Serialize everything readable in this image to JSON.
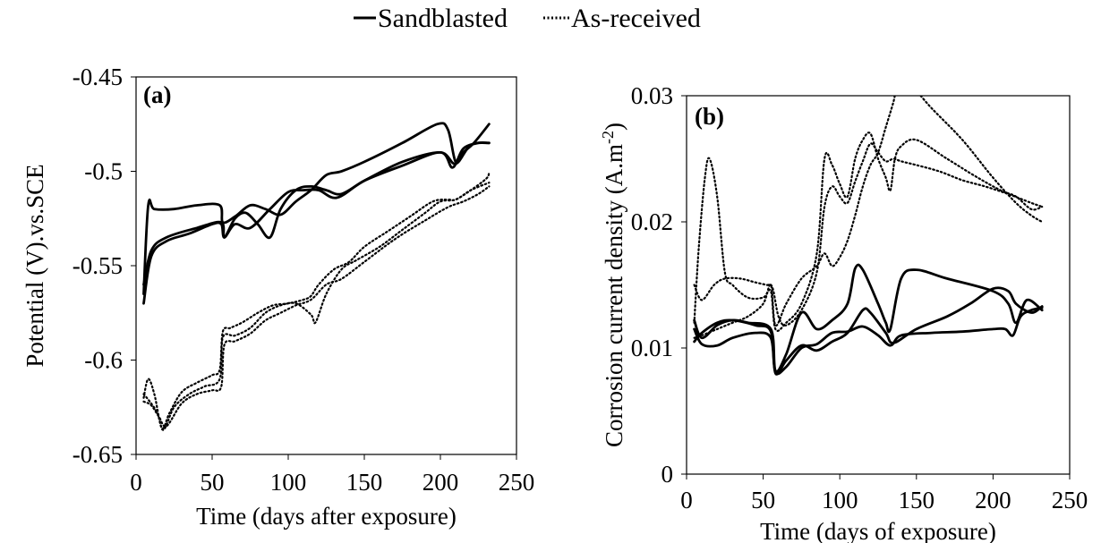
{
  "legend": {
    "solid_label": "Sandblasted",
    "dotted_label": "As-received"
  },
  "chart_data": [
    {
      "type": "line",
      "panel_label": "(a)",
      "xlabel": "Time (days after exposure)",
      "ylabel": "Potential (V).vs.SCE",
      "xlim": [
        0,
        250
      ],
      "ylim": [
        -0.65,
        -0.45
      ],
      "xticks": [
        0,
        50,
        100,
        150,
        200,
        250
      ],
      "yticks": [
        -0.65,
        -0.6,
        -0.55,
        -0.5,
        -0.45
      ],
      "xtick_labels": [
        "0",
        "50",
        "100",
        "150",
        "200",
        "250"
      ],
      "ytick_labels": [
        "-0.65",
        "-0.6",
        "-0.55",
        "-0.5",
        "-0.45"
      ],
      "grid": false,
      "series": [
        {
          "group": "Sandblasted",
          "style": "solid",
          "x": [
            5,
            8,
            12,
            25,
            40,
            55,
            57,
            65,
            75,
            85,
            95,
            105,
            115,
            125,
            135,
            150,
            175,
            198,
            205,
            210,
            215,
            222,
            232
          ],
          "y": [
            -0.565,
            -0.518,
            -0.52,
            -0.52,
            -0.518,
            -0.518,
            -0.527,
            -0.524,
            -0.518,
            -0.52,
            -0.523,
            -0.516,
            -0.51,
            -0.502,
            -0.5,
            -0.495,
            -0.485,
            -0.475,
            -0.478,
            -0.495,
            -0.49,
            -0.485,
            -0.475
          ]
        },
        {
          "group": "Sandblasted",
          "style": "solid",
          "x": [
            5,
            10,
            20,
            35,
            50,
            56,
            58,
            65,
            75,
            88,
            100,
            110,
            120,
            132,
            150,
            175,
            200,
            208,
            215,
            225,
            232
          ],
          "y": [
            -0.57,
            -0.545,
            -0.537,
            -0.533,
            -0.528,
            -0.528,
            -0.535,
            -0.528,
            -0.53,
            -0.52,
            -0.511,
            -0.51,
            -0.51,
            -0.514,
            -0.505,
            -0.497,
            -0.49,
            -0.498,
            -0.488,
            -0.485,
            -0.485
          ]
        },
        {
          "group": "Sandblasted",
          "style": "solid",
          "x": [
            5,
            10,
            20,
            40,
            56,
            58,
            65,
            72,
            80,
            88,
            95,
            105,
            115,
            125,
            135,
            150,
            175,
            200,
            210,
            220,
            232
          ],
          "y": [
            -0.56,
            -0.542,
            -0.535,
            -0.53,
            -0.527,
            -0.535,
            -0.525,
            -0.522,
            -0.528,
            -0.535,
            -0.52,
            -0.51,
            -0.508,
            -0.51,
            -0.512,
            -0.505,
            -0.495,
            -0.49,
            -0.496,
            -0.486,
            -0.485
          ]
        },
        {
          "group": "As-received",
          "style": "dotted",
          "x": [
            5,
            8,
            12,
            17,
            22,
            30,
            40,
            50,
            55,
            57,
            62,
            70,
            80,
            90,
            100,
            110,
            115,
            120,
            130,
            140,
            150,
            165,
            180,
            195,
            205,
            210,
            220,
            230,
            232
          ],
          "y": [
            -0.62,
            -0.61,
            -0.618,
            -0.636,
            -0.628,
            -0.617,
            -0.612,
            -0.608,
            -0.605,
            -0.585,
            -0.583,
            -0.58,
            -0.575,
            -0.571,
            -0.57,
            -0.568,
            -0.566,
            -0.56,
            -0.552,
            -0.548,
            -0.54,
            -0.532,
            -0.524,
            -0.516,
            -0.515,
            -0.515,
            -0.51,
            -0.504,
            -0.501
          ]
        },
        {
          "group": "As-received",
          "style": "dotted",
          "x": [
            5,
            9,
            14,
            18,
            25,
            35,
            45,
            55,
            57,
            65,
            75,
            85,
            95,
            105,
            115,
            118,
            125,
            135,
            145,
            160,
            175,
            190,
            200,
            210,
            220,
            232
          ],
          "y": [
            -0.618,
            -0.622,
            -0.628,
            -0.637,
            -0.625,
            -0.618,
            -0.614,
            -0.61,
            -0.588,
            -0.587,
            -0.583,
            -0.575,
            -0.571,
            -0.57,
            -0.576,
            -0.58,
            -0.565,
            -0.552,
            -0.547,
            -0.54,
            -0.531,
            -0.522,
            -0.516,
            -0.515,
            -0.51,
            -0.506
          ]
        },
        {
          "group": "As-received",
          "style": "dotted",
          "x": [
            5,
            10,
            15,
            20,
            30,
            40,
            50,
            56,
            58,
            65,
            75,
            85,
            95,
            105,
            115,
            125,
            135,
            150,
            170,
            190,
            205,
            215,
            225,
            232
          ],
          "y": [
            -0.622,
            -0.624,
            -0.63,
            -0.635,
            -0.623,
            -0.618,
            -0.616,
            -0.614,
            -0.592,
            -0.59,
            -0.586,
            -0.579,
            -0.575,
            -0.571,
            -0.568,
            -0.56,
            -0.557,
            -0.548,
            -0.536,
            -0.526,
            -0.519,
            -0.516,
            -0.512,
            -0.508
          ]
        }
      ]
    },
    {
      "type": "line",
      "panel_label": "(b)",
      "xlabel": "Time (days of exposure)",
      "ylabel": "Corrosion current density (A.m",
      "ylabel_sup": "-2",
      "ylabel_end": ")",
      "xlim": [
        0,
        250
      ],
      "ylim": [
        0,
        0.03
      ],
      "xticks": [
        0,
        50,
        100,
        150,
        200,
        250
      ],
      "yticks": [
        0,
        0.01,
        0.02,
        0.03
      ],
      "xtick_labels": [
        "0",
        "50",
        "100",
        "150",
        "200",
        "250"
      ],
      "ytick_labels": [
        "0",
        "0.01",
        "0.02",
        "0.03"
      ],
      "grid": false,
      "series": [
        {
          "group": "Sandblasted",
          "style": "solid",
          "x": [
            5,
            10,
            20,
            30,
            40,
            55,
            58,
            65,
            75,
            85,
            95,
            105,
            110,
            115,
            125,
            130,
            133,
            140,
            150,
            170,
            200,
            210,
            215,
            222,
            232
          ],
          "y": [
            0.0122,
            0.0108,
            0.0118,
            0.0122,
            0.012,
            0.0115,
            0.0082,
            0.0095,
            0.0128,
            0.0115,
            0.0122,
            0.0135,
            0.0163,
            0.0162,
            0.0135,
            0.012,
            0.0115,
            0.0155,
            0.0162,
            0.0155,
            0.0145,
            0.0135,
            0.012,
            0.0138,
            0.013
          ]
        },
        {
          "group": "Sandblasted",
          "style": "solid",
          "x": [
            5,
            10,
            20,
            30,
            45,
            55,
            58,
            65,
            75,
            85,
            95,
            105,
            115,
            120,
            130,
            135,
            150,
            170,
            185,
            200,
            210,
            215,
            225,
            232
          ],
          "y": [
            0.0105,
            0.0112,
            0.012,
            0.0122,
            0.0118,
            0.0113,
            0.008,
            0.009,
            0.0102,
            0.0098,
            0.0105,
            0.0112,
            0.013,
            0.0128,
            0.0112,
            0.0104,
            0.0115,
            0.0125,
            0.0135,
            0.0147,
            0.0145,
            0.0135,
            0.0128,
            0.0133
          ]
        },
        {
          "group": "Sandblasted",
          "style": "solid",
          "x": [
            5,
            10,
            20,
            30,
            45,
            55,
            58,
            65,
            75,
            85,
            95,
            105,
            115,
            125,
            133,
            140,
            160,
            180,
            200,
            208,
            213,
            218,
            225,
            232
          ],
          "y": [
            0.0115,
            0.0103,
            0.0102,
            0.0108,
            0.0112,
            0.0108,
            0.0081,
            0.0085,
            0.01,
            0.0103,
            0.0112,
            0.0113,
            0.0117,
            0.011,
            0.0102,
            0.011,
            0.0112,
            0.0113,
            0.0115,
            0.0115,
            0.011,
            0.0125,
            0.013,
            0.0132
          ]
        },
        {
          "group": "As-received",
          "style": "dotted",
          "x": [
            5,
            8,
            12,
            15,
            20,
            25,
            30,
            40,
            50,
            55,
            58,
            65,
            75,
            85,
            90,
            95,
            100,
            105,
            110,
            115,
            120,
            125,
            130,
            133,
            136,
            140,
            150,
            170,
            190,
            205,
            215,
            225,
            232
          ],
          "y": [
            0.012,
            0.018,
            0.0235,
            0.025,
            0.022,
            0.016,
            0.015,
            0.014,
            0.014,
            0.0145,
            0.0115,
            0.012,
            0.0135,
            0.0175,
            0.025,
            0.0245,
            0.023,
            0.022,
            0.025,
            0.0265,
            0.027,
            0.025,
            0.0235,
            0.0225,
            0.025,
            0.026,
            0.0265,
            0.025,
            0.0235,
            0.0225,
            0.022,
            0.021,
            0.0212
          ]
        },
        {
          "group": "As-received",
          "style": "dotted",
          "x": [
            5,
            10,
            18,
            25,
            35,
            45,
            52,
            56,
            60,
            65,
            75,
            85,
            90,
            95,
            100,
            105,
            110,
            115,
            120,
            125,
            130,
            135,
            140,
            150,
            165,
            180,
            195,
            210,
            225,
            232
          ],
          "y": [
            0.015,
            0.0138,
            0.015,
            0.0155,
            0.0155,
            0.0152,
            0.015,
            0.0148,
            0.0125,
            0.0118,
            0.013,
            0.016,
            0.0212,
            0.0228,
            0.022,
            0.0215,
            0.0232,
            0.0248,
            0.0262,
            0.0255,
            0.0248,
            0.025,
            0.0248,
            0.0245,
            0.024,
            0.0233,
            0.0228,
            0.0222,
            0.0215,
            0.0212
          ]
        },
        {
          "group": "As-received",
          "style": "dotted",
          "x": [
            5,
            10,
            20,
            30,
            40,
            50,
            55,
            58,
            65,
            75,
            85,
            90,
            95,
            100,
            105,
            110,
            115,
            120,
            125,
            130,
            135,
            138,
            145,
            160,
            180,
            200,
            215,
            225,
            232
          ],
          "y": [
            0.0108,
            0.011,
            0.0115,
            0.012,
            0.0125,
            0.0135,
            0.015,
            0.0118,
            0.0135,
            0.0155,
            0.0165,
            0.0175,
            0.0165,
            0.0172,
            0.0185,
            0.0205,
            0.0228,
            0.0245,
            0.0255,
            0.0275,
            0.0295,
            0.031,
            0.031,
            0.029,
            0.0265,
            0.0235,
            0.0215,
            0.0205,
            0.02
          ]
        }
      ]
    }
  ]
}
